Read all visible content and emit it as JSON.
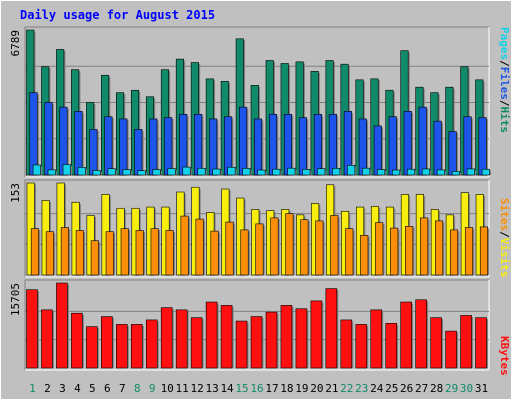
{
  "chart_data": [
    {
      "type": "bar",
      "title": "Daily usage for August 2015",
      "ylabel_max": "6789",
      "categories": [
        "1",
        "2",
        "3",
        "4",
        "5",
        "6",
        "7",
        "8",
        "9",
        "10",
        "11",
        "12",
        "13",
        "14",
        "15",
        "16",
        "17",
        "18",
        "19",
        "20",
        "21",
        "22",
        "23",
        "24",
        "25",
        "26",
        "27",
        "28",
        "29",
        "30",
        "31"
      ],
      "series": [
        {
          "name": "Hits",
          "color": "#108a68",
          "values": [
            6789,
            5068,
            5879,
            4932,
            3394,
            4671,
            3855,
            3969,
            3663,
            4932,
            5427,
            5266,
            4501,
            4386,
            6376,
            4196,
            5361,
            5222,
            5297,
            4853,
            5361,
            5189,
            4455,
            4501,
            3969,
            5822,
            4112,
            3855,
            4112,
            5068,
            4455
          ]
        },
        {
          "name": "Files",
          "color": "#1d55ea",
          "values": [
            3855,
            3394,
            3177,
            2981,
            2133,
            2728,
            2625,
            2133,
            2625,
            2686,
            2843,
            2843,
            2625,
            2728,
            3177,
            2625,
            2843,
            2843,
            2686,
            2843,
            2843,
            2981,
            2625,
            2296,
            2728,
            2981,
            3177,
            2523,
            2035,
            2728,
            2686
          ]
        },
        {
          "name": "Pages",
          "color": "#14d1ea",
          "values": [
            469,
            241,
            494,
            360,
            215,
            293,
            257,
            201,
            257,
            302,
            370,
            312,
            279,
            362,
            309,
            233,
            270,
            319,
            266,
            295,
            311,
            453,
            319,
            252,
            233,
            270,
            283,
            239,
            168,
            285,
            270
          ]
        }
      ],
      "legend": [
        "Pages",
        "/",
        "Files",
        "/",
        "Hits"
      ]
    },
    {
      "type": "bar",
      "ylabel_max": "153",
      "categories": [
        "1",
        "2",
        "3",
        "4",
        "5",
        "6",
        "7",
        "8",
        "9",
        "10",
        "11",
        "12",
        "13",
        "14",
        "15",
        "16",
        "17",
        "18",
        "19",
        "20",
        "21",
        "22",
        "23",
        "24",
        "25",
        "26",
        "27",
        "28",
        "29",
        "30",
        "31"
      ],
      "series": [
        {
          "name": "Visits",
          "color": "#f7ee10",
          "values": [
            153,
            124,
            153,
            121,
            99,
            134,
            111,
            111,
            113,
            113,
            138,
            146,
            104,
            143,
            128,
            109,
            107,
            109,
            100,
            119,
            150,
            106,
            113,
            114,
            113,
            134,
            134,
            109,
            100,
            137,
            134
          ]
        },
        {
          "name": "Sites",
          "color": "#fb8f0a",
          "values": [
            77,
            72,
            79,
            74,
            57,
            72,
            77,
            74,
            77,
            74,
            98,
            93,
            73,
            88,
            75,
            85,
            95,
            102,
            92,
            90,
            99,
            77,
            66,
            87,
            78,
            81,
            95,
            90,
            75,
            79,
            80
          ]
        }
      ],
      "legend": [
        "Sites",
        "/",
        "Visits"
      ]
    },
    {
      "type": "bar",
      "ylabel_max": "15705",
      "categories": [
        "1",
        "2",
        "3",
        "4",
        "5",
        "6",
        "7",
        "8",
        "9",
        "10",
        "11",
        "12",
        "13",
        "14",
        "15",
        "16",
        "17",
        "18",
        "19",
        "20",
        "21",
        "22",
        "23",
        "24",
        "25",
        "26",
        "27",
        "28",
        "29",
        "30",
        "31"
      ],
      "series": [
        {
          "name": "KBytes",
          "color": "#ff1010",
          "values": [
            14466,
            10743,
            15705,
            10123,
            7642,
            9503,
            8055,
            8055,
            8882,
            11156,
            10743,
            9296,
            12190,
            11569,
            8675,
            9503,
            10330,
            11569,
            10950,
            12397,
            14673,
            8882,
            8055,
            10743,
            8261,
            12190,
            12603,
            9296,
            6815,
            9710,
            9296
          ]
        }
      ],
      "legend": [
        "KBytes"
      ]
    }
  ],
  "weekend_days": [
    "1",
    "8",
    "9",
    "15",
    "16",
    "22",
    "23",
    "29",
    "30"
  ]
}
